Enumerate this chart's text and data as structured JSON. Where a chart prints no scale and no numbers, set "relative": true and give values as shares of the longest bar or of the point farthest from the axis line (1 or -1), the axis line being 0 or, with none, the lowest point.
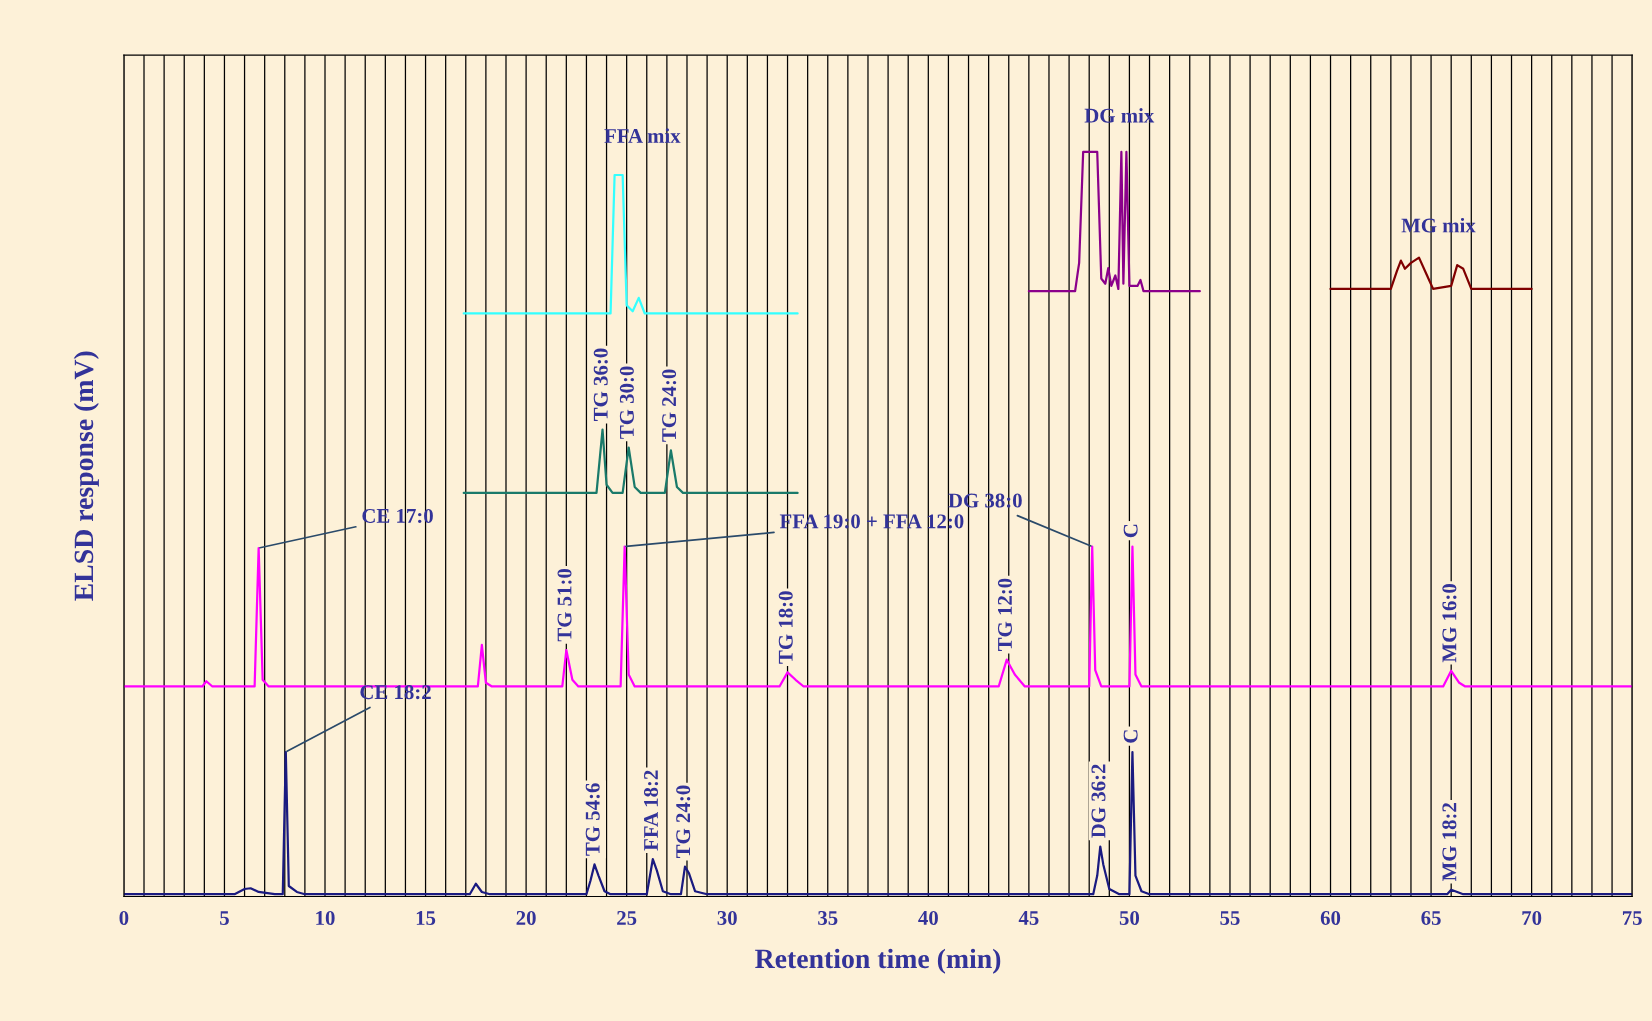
{
  "chart_data": {
    "type": "line",
    "relative": true,
    "xlabel": "Retention time (min)",
    "ylabel": "ELSD response (mV)",
    "xlim": [
      0,
      75
    ],
    "xticks": [
      0,
      {
        "value": 1,
        "label": null
      },
      {
        "value": 2,
        "label": null
      },
      {
        "value": 3,
        "label": null
      },
      {
        "value": 4,
        "label": null
      },
      5,
      {
        "value": 6,
        "label": null
      },
      {
        "value": 7,
        "label": null
      },
      {
        "value": 8,
        "label": null
      },
      {
        "value": 9,
        "label": null
      },
      10,
      {
        "value": 11,
        "label": null
      },
      {
        "value": 12,
        "label": null
      },
      {
        "value": 13,
        "label": null
      },
      {
        "value": 14,
        "label": null
      },
      15,
      {
        "value": 16,
        "label": null
      },
      {
        "value": 17,
        "label": null
      },
      {
        "value": 18,
        "label": null
      },
      {
        "value": 19,
        "label": null
      },
      20,
      {
        "value": 21,
        "label": null
      },
      {
        "value": 22,
        "label": null
      },
      {
        "value": 23,
        "label": null
      },
      {
        "value": 24,
        "label": null
      },
      25,
      {
        "value": 26,
        "label": null
      },
      {
        "value": 27,
        "label": null
      },
      {
        "value": 28,
        "label": null
      },
      {
        "value": 29,
        "label": null
      },
      30,
      {
        "value": 31,
        "label": null
      },
      {
        "value": 32,
        "label": null
      },
      {
        "value": 33,
        "label": null
      },
      {
        "value": 34,
        "label": null
      },
      35,
      {
        "value": 36,
        "label": null
      },
      {
        "value": 37,
        "label": null
      },
      {
        "value": 38,
        "label": null
      },
      {
        "value": 39,
        "label": null
      },
      40,
      {
        "value": 41,
        "label": null
      },
      {
        "value": 42,
        "label": null
      },
      {
        "value": 43,
        "label": null
      },
      {
        "value": 44,
        "label": null
      },
      45,
      {
        "value": 46,
        "label": null
      },
      {
        "value": 47,
        "label": null
      },
      {
        "value": 48,
        "label": null
      },
      {
        "value": 49,
        "label": null
      },
      50,
      {
        "value": 51,
        "label": null
      },
      {
        "value": 52,
        "label": null
      },
      {
        "value": 53,
        "label": null
      },
      {
        "value": 54,
        "label": null
      },
      55,
      {
        "value": 56,
        "label": null
      },
      {
        "value": 57,
        "label": null
      },
      {
        "value": 58,
        "label": null
      },
      {
        "value": 59,
        "label": null
      },
      60,
      {
        "value": 61,
        "label": null
      },
      {
        "value": 62,
        "label": null
      },
      {
        "value": 63,
        "label": null
      },
      {
        "value": 64,
        "label": null
      },
      65,
      {
        "value": 66,
        "label": null
      },
      {
        "value": 67,
        "label": null
      },
      {
        "value": 68,
        "label": null
      },
      {
        "value": 69,
        "label": null
      },
      70,
      {
        "value": 71,
        "label": null
      },
      {
        "value": 72,
        "label": null
      },
      {
        "value": 73,
        "label": null
      },
      {
        "value": 74,
        "label": null
      },
      75
    ],
    "grid": "x",
    "series": [
      {
        "color": "#1a1a80",
        "x": [
          0,
          5.5,
          6.0,
          6.3,
          6.7,
          7.5,
          7.9,
          8.05,
          8.2,
          8.6,
          9,
          17.2,
          17.5,
          17.8,
          18.2,
          23.0,
          23.2,
          23.4,
          23.6,
          23.9,
          24.2,
          26.0,
          26.3,
          26.5,
          26.8,
          27.2,
          27.7,
          27.9,
          28.1,
          28.4,
          29,
          48.2,
          48.4,
          48.55,
          48.7,
          49,
          49.5,
          50.0,
          50.15,
          50.3,
          50.6,
          51,
          65.8,
          66.0,
          66.3,
          66.6,
          75
        ],
        "values": [
          0.003,
          0.003,
          0.01,
          0.011,
          0.006,
          0.003,
          0.003,
          0.194,
          0.014,
          0.006,
          0.003,
          0.003,
          0.017,
          0.006,
          0.003,
          0.003,
          0.021,
          0.043,
          0.028,
          0.007,
          0.003,
          0.003,
          0.05,
          0.035,
          0.007,
          0.003,
          0.003,
          0.04,
          0.031,
          0.007,
          0.003,
          0.003,
          0.028,
          0.067,
          0.043,
          0.01,
          0.003,
          0.003,
          0.194,
          0.028,
          0.007,
          0.003,
          0.003,
          0.009,
          0.006,
          0.003,
          0.003
        ]
      },
      {
        "color": "#ff00ff",
        "x": [
          0,
          3.9,
          4.1,
          4.4,
          6.5,
          6.7,
          6.9,
          7.2,
          17.6,
          17.8,
          18.0,
          18.3,
          21.8,
          22.0,
          22.3,
          22.6,
          24.7,
          24.9,
          25.1,
          25.4,
          32.6,
          33.0,
          33.4,
          33.8,
          43.5,
          43.9,
          44.3,
          44.8,
          48.0,
          48.15,
          48.3,
          48.6,
          50.0,
          50.15,
          50.3,
          50.6,
          65.6,
          66.0,
          66.4,
          66.7,
          75
        ],
        "values": [
          0.282,
          0.282,
          0.289,
          0.282,
          0.282,
          0.468,
          0.291,
          0.282,
          0.282,
          0.338,
          0.287,
          0.282,
          0.282,
          0.331,
          0.291,
          0.282,
          0.282,
          0.47,
          0.298,
          0.282,
          0.282,
          0.301,
          0.291,
          0.282,
          0.282,
          0.318,
          0.298,
          0.282,
          0.282,
          0.47,
          0.304,
          0.282,
          0.282,
          0.47,
          0.298,
          0.282,
          0.282,
          0.303,
          0.287,
          0.282,
          0.282
        ]
      },
      {
        "color": "#1a7a6a",
        "x": [
          16.9,
          23.5,
          23.8,
          24.0,
          24.3,
          24.8,
          25.1,
          25.4,
          25.7,
          26.9,
          27.2,
          27.5,
          27.8,
          33.5
        ],
        "values": [
          0.542,
          0.542,
          0.627,
          0.553,
          0.542,
          0.542,
          0.603,
          0.55,
          0.542,
          0.542,
          0.599,
          0.55,
          0.542,
          0.542
        ]
      },
      {
        "color": "#33ffff",
        "x": [
          16.9,
          24.2,
          24.4,
          24.8,
          25.0,
          25.3,
          25.6,
          25.9,
          33.5
        ],
        "values": [
          0.783,
          0.783,
          0.969,
          0.969,
          0.794,
          0.786,
          0.804,
          0.783,
          0.783
        ]
      },
      {
        "color": "#8b008b",
        "x": [
          45.0,
          47.3,
          47.5,
          47.7,
          48.4,
          48.6,
          48.8,
          48.95,
          49.1,
          49.3,
          49.45,
          49.6,
          49.7,
          49.85,
          50.0,
          50.4,
          50.55,
          50.7,
          53.5
        ],
        "values": [
          0.813,
          0.813,
          0.851,
          1.0,
          1.0,
          0.83,
          0.823,
          0.844,
          0.82,
          0.834,
          0.816,
          1.0,
          0.823,
          1.0,
          0.82,
          0.82,
          0.828,
          0.813,
          0.813
        ]
      },
      {
        "color": "#800000",
        "x": [
          60,
          63.0,
          63.3,
          63.5,
          63.7,
          64.0,
          64.4,
          64.8,
          65.1,
          66.0,
          66.3,
          66.6,
          67.0,
          70
        ],
        "values": [
          0.816,
          0.816,
          0.84,
          0.854,
          0.843,
          0.851,
          0.858,
          0.834,
          0.816,
          0.82,
          0.848,
          0.843,
          0.816,
          0.816
        ]
      }
    ],
    "annotations": [
      {
        "text": "CE 17:0",
        "x": 6.7,
        "y": 0.468
      },
      {
        "text": "CE 18:2",
        "x": 8.05,
        "y": 0.194
      },
      {
        "text": "FFA mix",
        "x": 24.4,
        "y": 0.969
      },
      {
        "text": "DG mix",
        "x": 47.7,
        "y": 1.0
      },
      {
        "text": "MG mix",
        "x": 64.4,
        "y": 0.858
      },
      {
        "text": "FFA 19:0 + FFA 12:0",
        "x": 24.9,
        "y": 0.47
      },
      {
        "text": "DG 38:0",
        "x": 48.15,
        "y": 0.47
      },
      {
        "text": "TG 51:0",
        "x": 22.0,
        "y": 0.331
      },
      {
        "text": "TG 18:0",
        "x": 33.0,
        "y": 0.301
      },
      {
        "text": "TG 12:0",
        "x": 43.9,
        "y": 0.318
      },
      {
        "text": "MG 16:0",
        "x": 66.0,
        "y": 0.303
      },
      {
        "text": "C",
        "x": 50.15,
        "y": 0.47
      },
      {
        "text": "TG 54:6",
        "x": 23.4,
        "y": 0.043
      },
      {
        "text": "FFA 18:2",
        "x": 26.3,
        "y": 0.05
      },
      {
        "text": "TG 24:0",
        "x": 27.9,
        "y": 0.04
      },
      {
        "text": "DG 36:2",
        "x": 48.55,
        "y": 0.067
      },
      {
        "text": "MG 18:2",
        "x": 66.0,
        "y": 0.009
      },
      {
        "text": "C",
        "x": 50.15,
        "y": 0.194
      },
      {
        "text": "TG 36:0",
        "x": 23.8,
        "y": 0.627
      },
      {
        "text": "TG 30:0",
        "x": 25.1,
        "y": 0.603
      },
      {
        "text": "TG 24:0",
        "x": 27.2,
        "y": 0.599
      }
    ]
  }
}
